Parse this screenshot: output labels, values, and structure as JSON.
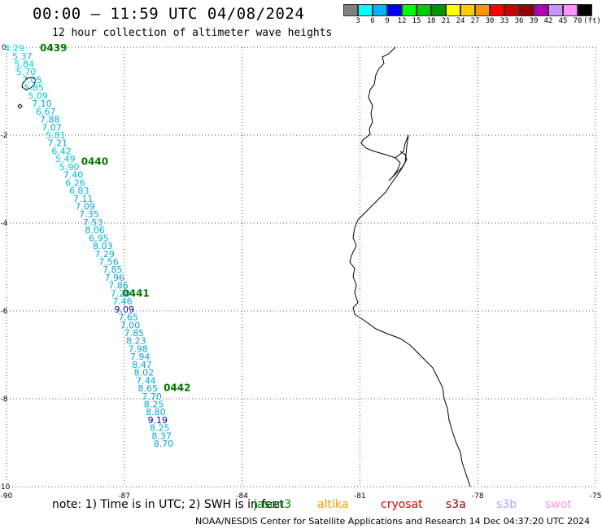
{
  "header": {
    "title": "00:00 — 11:59 UTC 04/08/2024",
    "subtitle": "12 hour collection of altimeter wave heights"
  },
  "colorbar": {
    "colors": [
      "#808080",
      "#00ffff",
      "#00b4ff",
      "#0000ff",
      "#00ff00",
      "#00cc00",
      "#009600",
      "#ffff00",
      "#ffcc00",
      "#ff9600",
      "#ff0000",
      "#c80000",
      "#960000",
      "#b400b4",
      "#c896ff",
      "#ff96ff",
      "#000000"
    ],
    "labels": [
      "3",
      "6",
      "9",
      "12",
      "15",
      "18",
      "21",
      "24",
      "27",
      "30",
      "33",
      "36",
      "39",
      "42",
      "45",
      "70",
      "(ft)"
    ]
  },
  "axes": {
    "lon_labels": [
      "-90",
      "-87",
      "-84",
      "-81",
      "-78",
      "-75"
    ],
    "lat_labels": [
      "0",
      "-2",
      "-4",
      "-6",
      "-8",
      "-10"
    ],
    "lon_range": [
      -90,
      -75
    ],
    "lat_range": [
      -10,
      0
    ]
  },
  "track": {
    "points": [
      {
        "lon": -89.8,
        "lat": -0.02,
        "v": "4.29",
        "c": "#00e0e0"
      },
      {
        "lon": -89.6,
        "lat": -0.2,
        "v": "5.37",
        "c": "#00c8d8"
      },
      {
        "lon": -89.55,
        "lat": -0.38,
        "v": "5.84",
        "c": "#00c8d8"
      },
      {
        "lon": -89.5,
        "lat": -0.56,
        "v": "5.70",
        "c": "#00c8d8"
      },
      {
        "lon": -89.35,
        "lat": -0.74,
        "v": "7.05",
        "c": "#00a8d8"
      },
      {
        "lon": -89.3,
        "lat": -0.92,
        "v": "5.85",
        "c": "#00c8d8"
      },
      {
        "lon": -89.2,
        "lat": -1.1,
        "v": "5.09",
        "c": "#00c8d8"
      },
      {
        "lon": -89.1,
        "lat": -1.28,
        "v": "7.10",
        "c": "#00a8d8"
      },
      {
        "lon": -89.0,
        "lat": -1.46,
        "v": "6.67",
        "c": "#00b8d8"
      },
      {
        "lon": -88.9,
        "lat": -1.64,
        "v": "7.88",
        "c": "#00a8d8"
      },
      {
        "lon": -88.85,
        "lat": -1.82,
        "v": "7.07",
        "c": "#00a8d8"
      },
      {
        "lon": -88.75,
        "lat": -2.0,
        "v": "5.81",
        "c": "#00c8d8"
      },
      {
        "lon": -88.7,
        "lat": -2.18,
        "v": "7.21",
        "c": "#00a8d8"
      },
      {
        "lon": -88.6,
        "lat": -2.36,
        "v": "6.42",
        "c": "#00b8d8"
      },
      {
        "lon": -88.5,
        "lat": -2.54,
        "v": "5.49",
        "c": "#00c8d8"
      },
      {
        "lon": -88.4,
        "lat": -2.72,
        "v": "5.90",
        "c": "#00c8d8"
      },
      {
        "lon": -88.3,
        "lat": -2.9,
        "v": "7.40",
        "c": "#00a8d8"
      },
      {
        "lon": -88.25,
        "lat": -3.08,
        "v": "6.26",
        "c": "#00b8d8"
      },
      {
        "lon": -88.15,
        "lat": -3.26,
        "v": "6.83",
        "c": "#00b8d8"
      },
      {
        "lon": -88.05,
        "lat": -3.44,
        "v": "7.11",
        "c": "#00a8d8"
      },
      {
        "lon": -88.0,
        "lat": -3.62,
        "v": "7.09",
        "c": "#00a8d8"
      },
      {
        "lon": -87.9,
        "lat": -3.8,
        "v": "7.35",
        "c": "#00a8d8"
      },
      {
        "lon": -87.8,
        "lat": -3.98,
        "v": "7.53",
        "c": "#00a8d8"
      },
      {
        "lon": -87.75,
        "lat": -4.16,
        "v": "8.06",
        "c": "#00a8d8"
      },
      {
        "lon": -87.65,
        "lat": -4.34,
        "v": "6.95",
        "c": "#00b8d8"
      },
      {
        "lon": -87.55,
        "lat": -4.52,
        "v": "8.03",
        "c": "#00a8d8"
      },
      {
        "lon": -87.5,
        "lat": -4.7,
        "v": "7.29",
        "c": "#00a8d8"
      },
      {
        "lon": -87.4,
        "lat": -4.88,
        "v": "7.56",
        "c": "#00a8d8"
      },
      {
        "lon": -87.3,
        "lat": -5.06,
        "v": "7.85",
        "c": "#00a8d8"
      },
      {
        "lon": -87.25,
        "lat": -5.24,
        "v": "7.96",
        "c": "#00a8d8"
      },
      {
        "lon": -87.15,
        "lat": -5.42,
        "v": "7.86",
        "c": "#00a8d8"
      },
      {
        "lon": -87.1,
        "lat": -5.6,
        "v": "7.20",
        "c": "#00a8d8"
      },
      {
        "lon": -87.05,
        "lat": -5.78,
        "v": "7.46",
        "c": "#00a8d8"
      },
      {
        "lon": -87.0,
        "lat": -5.96,
        "v": "9.09",
        "c": "#0000c8"
      },
      {
        "lon": -86.9,
        "lat": -6.14,
        "v": "7.65",
        "c": "#00a8d8"
      },
      {
        "lon": -86.85,
        "lat": -6.32,
        "v": "7.00",
        "c": "#00a8d8"
      },
      {
        "lon": -86.75,
        "lat": -6.5,
        "v": "7.85",
        "c": "#00a8d8"
      },
      {
        "lon": -86.7,
        "lat": -6.68,
        "v": "8.23",
        "c": "#00a8d8"
      },
      {
        "lon": -86.65,
        "lat": -6.86,
        "v": "7.98",
        "c": "#00a8d8"
      },
      {
        "lon": -86.6,
        "lat": -7.04,
        "v": "7.94",
        "c": "#00a8d8"
      },
      {
        "lon": -86.55,
        "lat": -7.22,
        "v": "8.47",
        "c": "#00a8d8"
      },
      {
        "lon": -86.5,
        "lat": -7.4,
        "v": "8.02",
        "c": "#00a8d8"
      },
      {
        "lon": -86.45,
        "lat": -7.58,
        "v": "7.44",
        "c": "#00a8d8"
      },
      {
        "lon": -86.4,
        "lat": -7.76,
        "v": "8.65",
        "c": "#00a8d8"
      },
      {
        "lon": -86.3,
        "lat": -7.94,
        "v": "7.70",
        "c": "#00a8d8"
      },
      {
        "lon": -86.25,
        "lat": -8.12,
        "v": "8.25",
        "c": "#00a8d8"
      },
      {
        "lon": -86.2,
        "lat": -8.3,
        "v": "8.80",
        "c": "#00a8d8"
      },
      {
        "lon": -86.15,
        "lat": -8.48,
        "v": "9.19",
        "c": "#0000c8"
      },
      {
        "lon": -86.1,
        "lat": -8.66,
        "v": "8.25",
        "c": "#00a8d8"
      },
      {
        "lon": -86.05,
        "lat": -8.84,
        "v": "8.37",
        "c": "#00a8d8"
      },
      {
        "lon": -86.0,
        "lat": -9.02,
        "v": "8.70",
        "c": "#00a8d8"
      }
    ],
    "time_marks": [
      {
        "lon": -89.15,
        "lat": -0.02,
        "t": "0439"
      },
      {
        "lon": -88.1,
        "lat": -2.6,
        "t": "0440"
      },
      {
        "lon": -87.05,
        "lat": -5.6,
        "t": "0441"
      },
      {
        "lon": -86.0,
        "lat": -7.75,
        "t": "0442"
      }
    ]
  },
  "footer": {
    "note": "note: 1) Time is in UTC; 2) SWH is in feet",
    "legend": [
      {
        "name": "jason3",
        "color": "#008800"
      },
      {
        "name": "altika",
        "color": "#ff9900"
      },
      {
        "name": "cryosat",
        "color": "#dd0000"
      },
      {
        "name": "s3a",
        "color": "#990000"
      },
      {
        "name": "s3b",
        "color": "#b4a0ff"
      },
      {
        "name": "swot",
        "color": "#ff99dd"
      }
    ],
    "credit": "NOAA/NESDIS Center for Satellite Applications and Research   14 Dec 04:37:20 UTC 2024"
  }
}
